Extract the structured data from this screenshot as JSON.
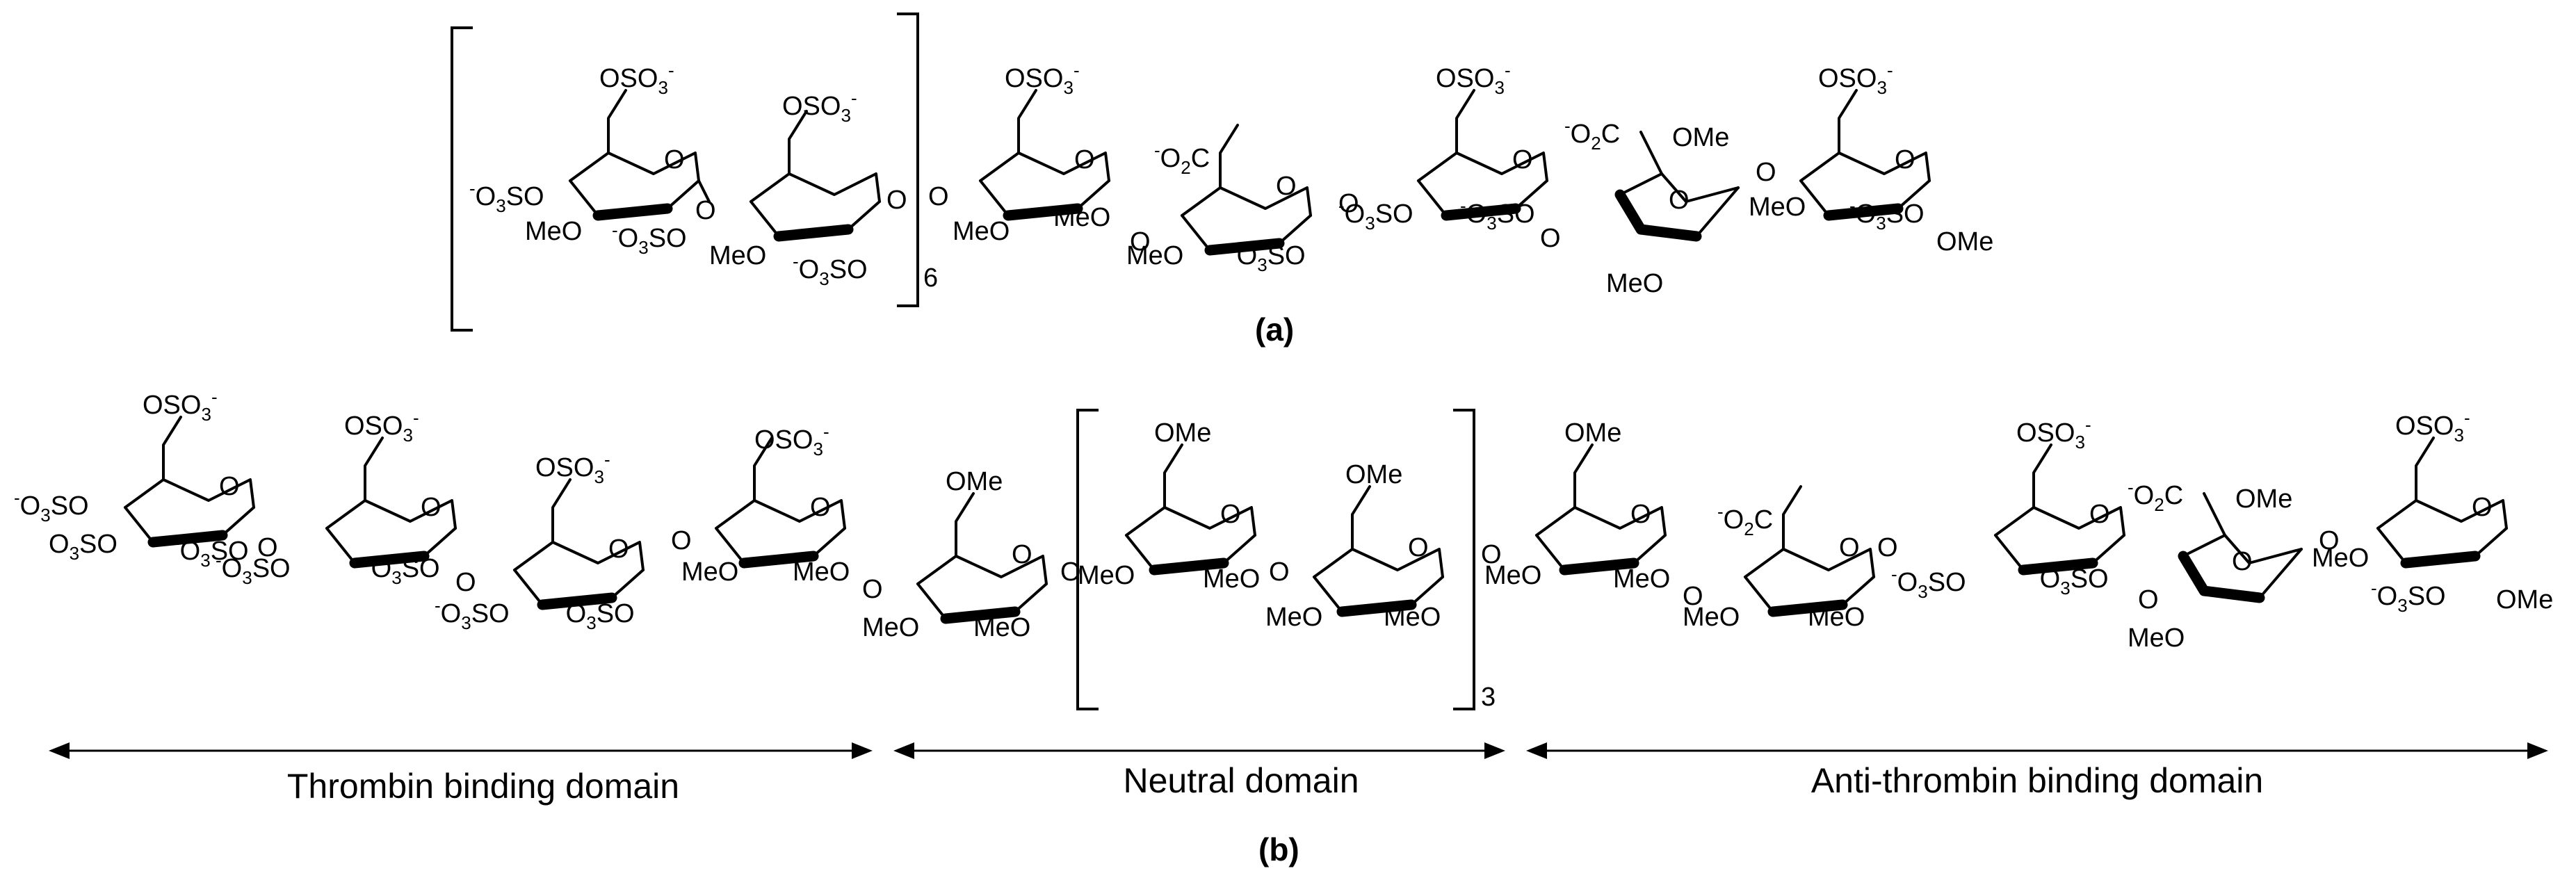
{
  "figure": {
    "panel_a": {
      "caption": "(a)",
      "repeat_count": "6",
      "units": [
        {
          "top": "OSO3-",
          "left": "-O3SO",
          "bottom_left": "MeO",
          "bottom_right": "-O3SO"
        },
        {
          "top": "OSO3-",
          "left": "O",
          "bottom_left": "MeO",
          "bottom_right": "-O3SO"
        },
        {
          "top": "OSO3-",
          "left": "O",
          "bottom_left": "MeO",
          "bottom_right": "MeO"
        },
        {
          "top": "-O2C",
          "left": "O",
          "bottom_left": "MeO",
          "bottom_right": "-O3SO"
        },
        {
          "top": "OSO3-",
          "left": "-O3SO",
          "bottom_left": "",
          "bottom_right": "-O3SO"
        },
        {
          "top": "-O2C",
          "left": "O",
          "bottom_left": "MeO",
          "bottom_right": "OMe"
        },
        {
          "top": "OSO3-",
          "left": "O",
          "bottom_left": "MeO",
          "bottom_right": "-O3SO",
          "end": "OMe"
        }
      ]
    },
    "panel_b": {
      "caption": "(b)",
      "repeat_count": "3",
      "domains": [
        {
          "label": "Thrombin binding domain"
        },
        {
          "label": "Neutral domain"
        },
        {
          "label": "Anti-thrombin binding domain"
        }
      ]
    }
  }
}
